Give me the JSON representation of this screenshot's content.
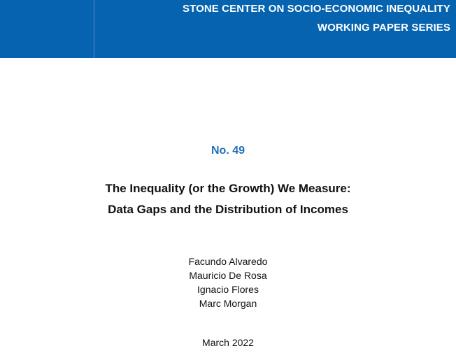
{
  "header": {
    "line1": "STONE CENTER ON SOCIO-ECONOMIC INEQUALITY",
    "line2": "WORKING PAPER SERIES",
    "band_color": "#0563b0"
  },
  "issue": {
    "number": "No. 49",
    "color": "#1f6fb5"
  },
  "title": {
    "line1": "The Inequality (or the Growth) We Measure:",
    "line2": "Data Gaps and the Distribution of Incomes"
  },
  "authors": [
    "Facundo Alvaredo",
    "Mauricio De Rosa",
    "Ignacio Flores",
    "Marc Morgan"
  ],
  "date": "March 2022"
}
